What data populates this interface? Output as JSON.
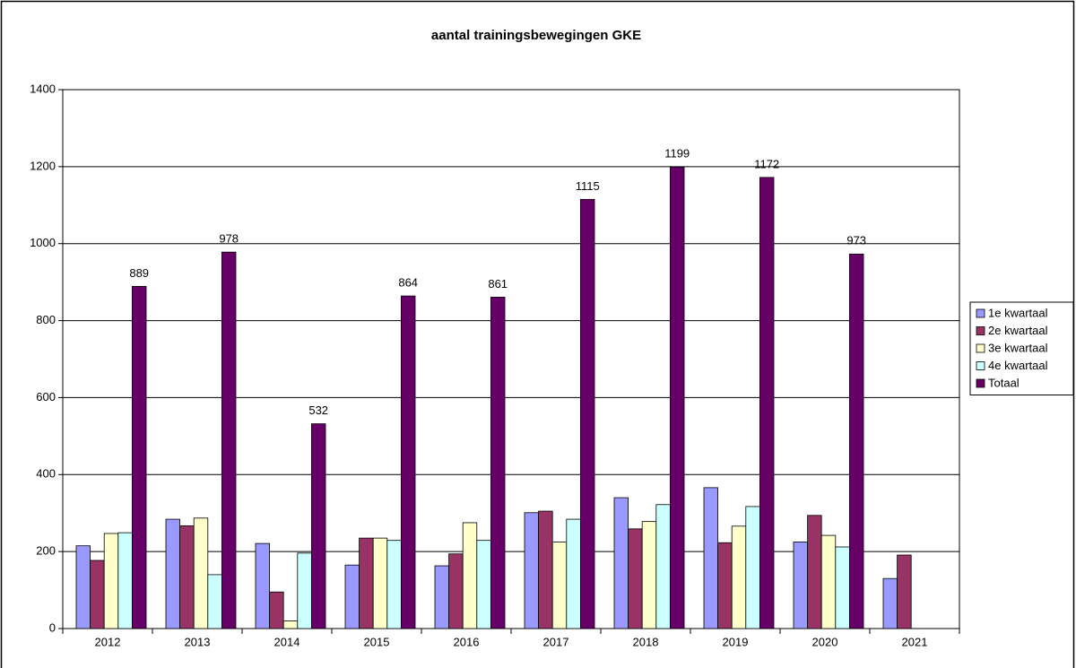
{
  "chart_data": {
    "type": "bar",
    "title": "aantal trainingsbewegingen GKE",
    "categories": [
      "2012",
      "2013",
      "2014",
      "2015",
      "2016",
      "2017",
      "2018",
      "2019",
      "2020",
      "2021"
    ],
    "series": [
      {
        "name": "1e kwartaal",
        "color": "#9999ff",
        "values": [
          215,
          284,
          221,
          165,
          163,
          301,
          340,
          366,
          225,
          130
        ]
      },
      {
        "name": "2e kwartaal",
        "color": "#993366",
        "values": [
          177,
          267,
          95,
          235,
          194,
          305,
          259,
          223,
          294,
          191
        ]
      },
      {
        "name": "3e kwartaal",
        "color": "#ffffcc",
        "values": [
          247,
          287,
          20,
          235,
          275,
          225,
          278,
          266,
          242,
          null
        ]
      },
      {
        "name": "4e kwartaal",
        "color": "#ccffff",
        "values": [
          249,
          140,
          196,
          229,
          229,
          284,
          322,
          317,
          212,
          null
        ]
      },
      {
        "name": "Totaal",
        "color": "#660066",
        "values": [
          889,
          978,
          532,
          864,
          861,
          1115,
          1199,
          1172,
          973,
          null
        ],
        "show_labels": true
      }
    ],
    "ylim": [
      0,
      1400
    ],
    "yticks": [
      0,
      200,
      400,
      600,
      800,
      1000,
      1200,
      1400
    ],
    "grid": true,
    "legend": "right"
  }
}
